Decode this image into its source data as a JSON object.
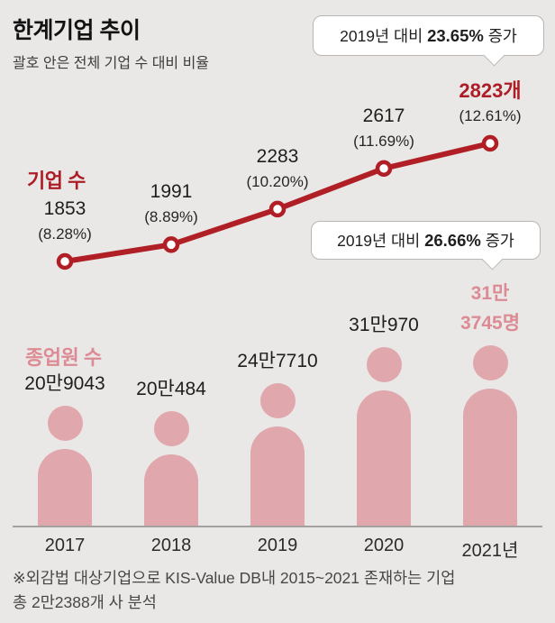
{
  "header": {
    "title": "한계기업 추이",
    "subtitle": "괄호 안은 전체 기업 수 대비 비율"
  },
  "colors": {
    "background": "#eae8e6",
    "line_red": "#b11f26",
    "red_text": "#ad1d26",
    "person_pink": "#e0a7ac",
    "pink_text": "#dc8b94"
  },
  "chart_data": [
    {
      "type": "line",
      "title": "기업 수",
      "categories": [
        "2017",
        "2018",
        "2019",
        "2020",
        "2021"
      ],
      "values": [
        1853,
        1991,
        2283,
        2617,
        2823
      ],
      "value_labels": [
        "1853",
        "1991",
        "2283",
        "2617",
        "2823개"
      ],
      "pct_labels": [
        "(8.28%)",
        "(8.89%)",
        "(10.20%)",
        "(11.69%)",
        "(12.61%)"
      ],
      "highlight_index": 4,
      "ylim": [
        1800,
        2900
      ],
      "legend_position": "left",
      "grid": false,
      "annotation": {
        "prefix": "2019년 대비 ",
        "value": "23.65%",
        "suffix": " 증가"
      }
    },
    {
      "type": "bar",
      "title": "종업원 수",
      "categories": [
        "2017",
        "2018",
        "2019",
        "2020",
        "2021년"
      ],
      "values": [
        209043,
        200484,
        247710,
        310970,
        313745
      ],
      "value_labels": [
        "20만9043",
        "20만484",
        "24만7710",
        "31만970",
        "31만\n3745명"
      ],
      "highlight_index": 4,
      "style": "person-pictogram",
      "grid": false,
      "annotation": {
        "prefix": "2019년 대비 ",
        "value": "26.66%",
        "suffix": " 증가"
      }
    }
  ],
  "footnote": {
    "line1": "※외감법 대상기업으로 KIS-Value DB내 2015~2021 존재하는 기업",
    "line2": "총 2만2388개 사 분석"
  }
}
